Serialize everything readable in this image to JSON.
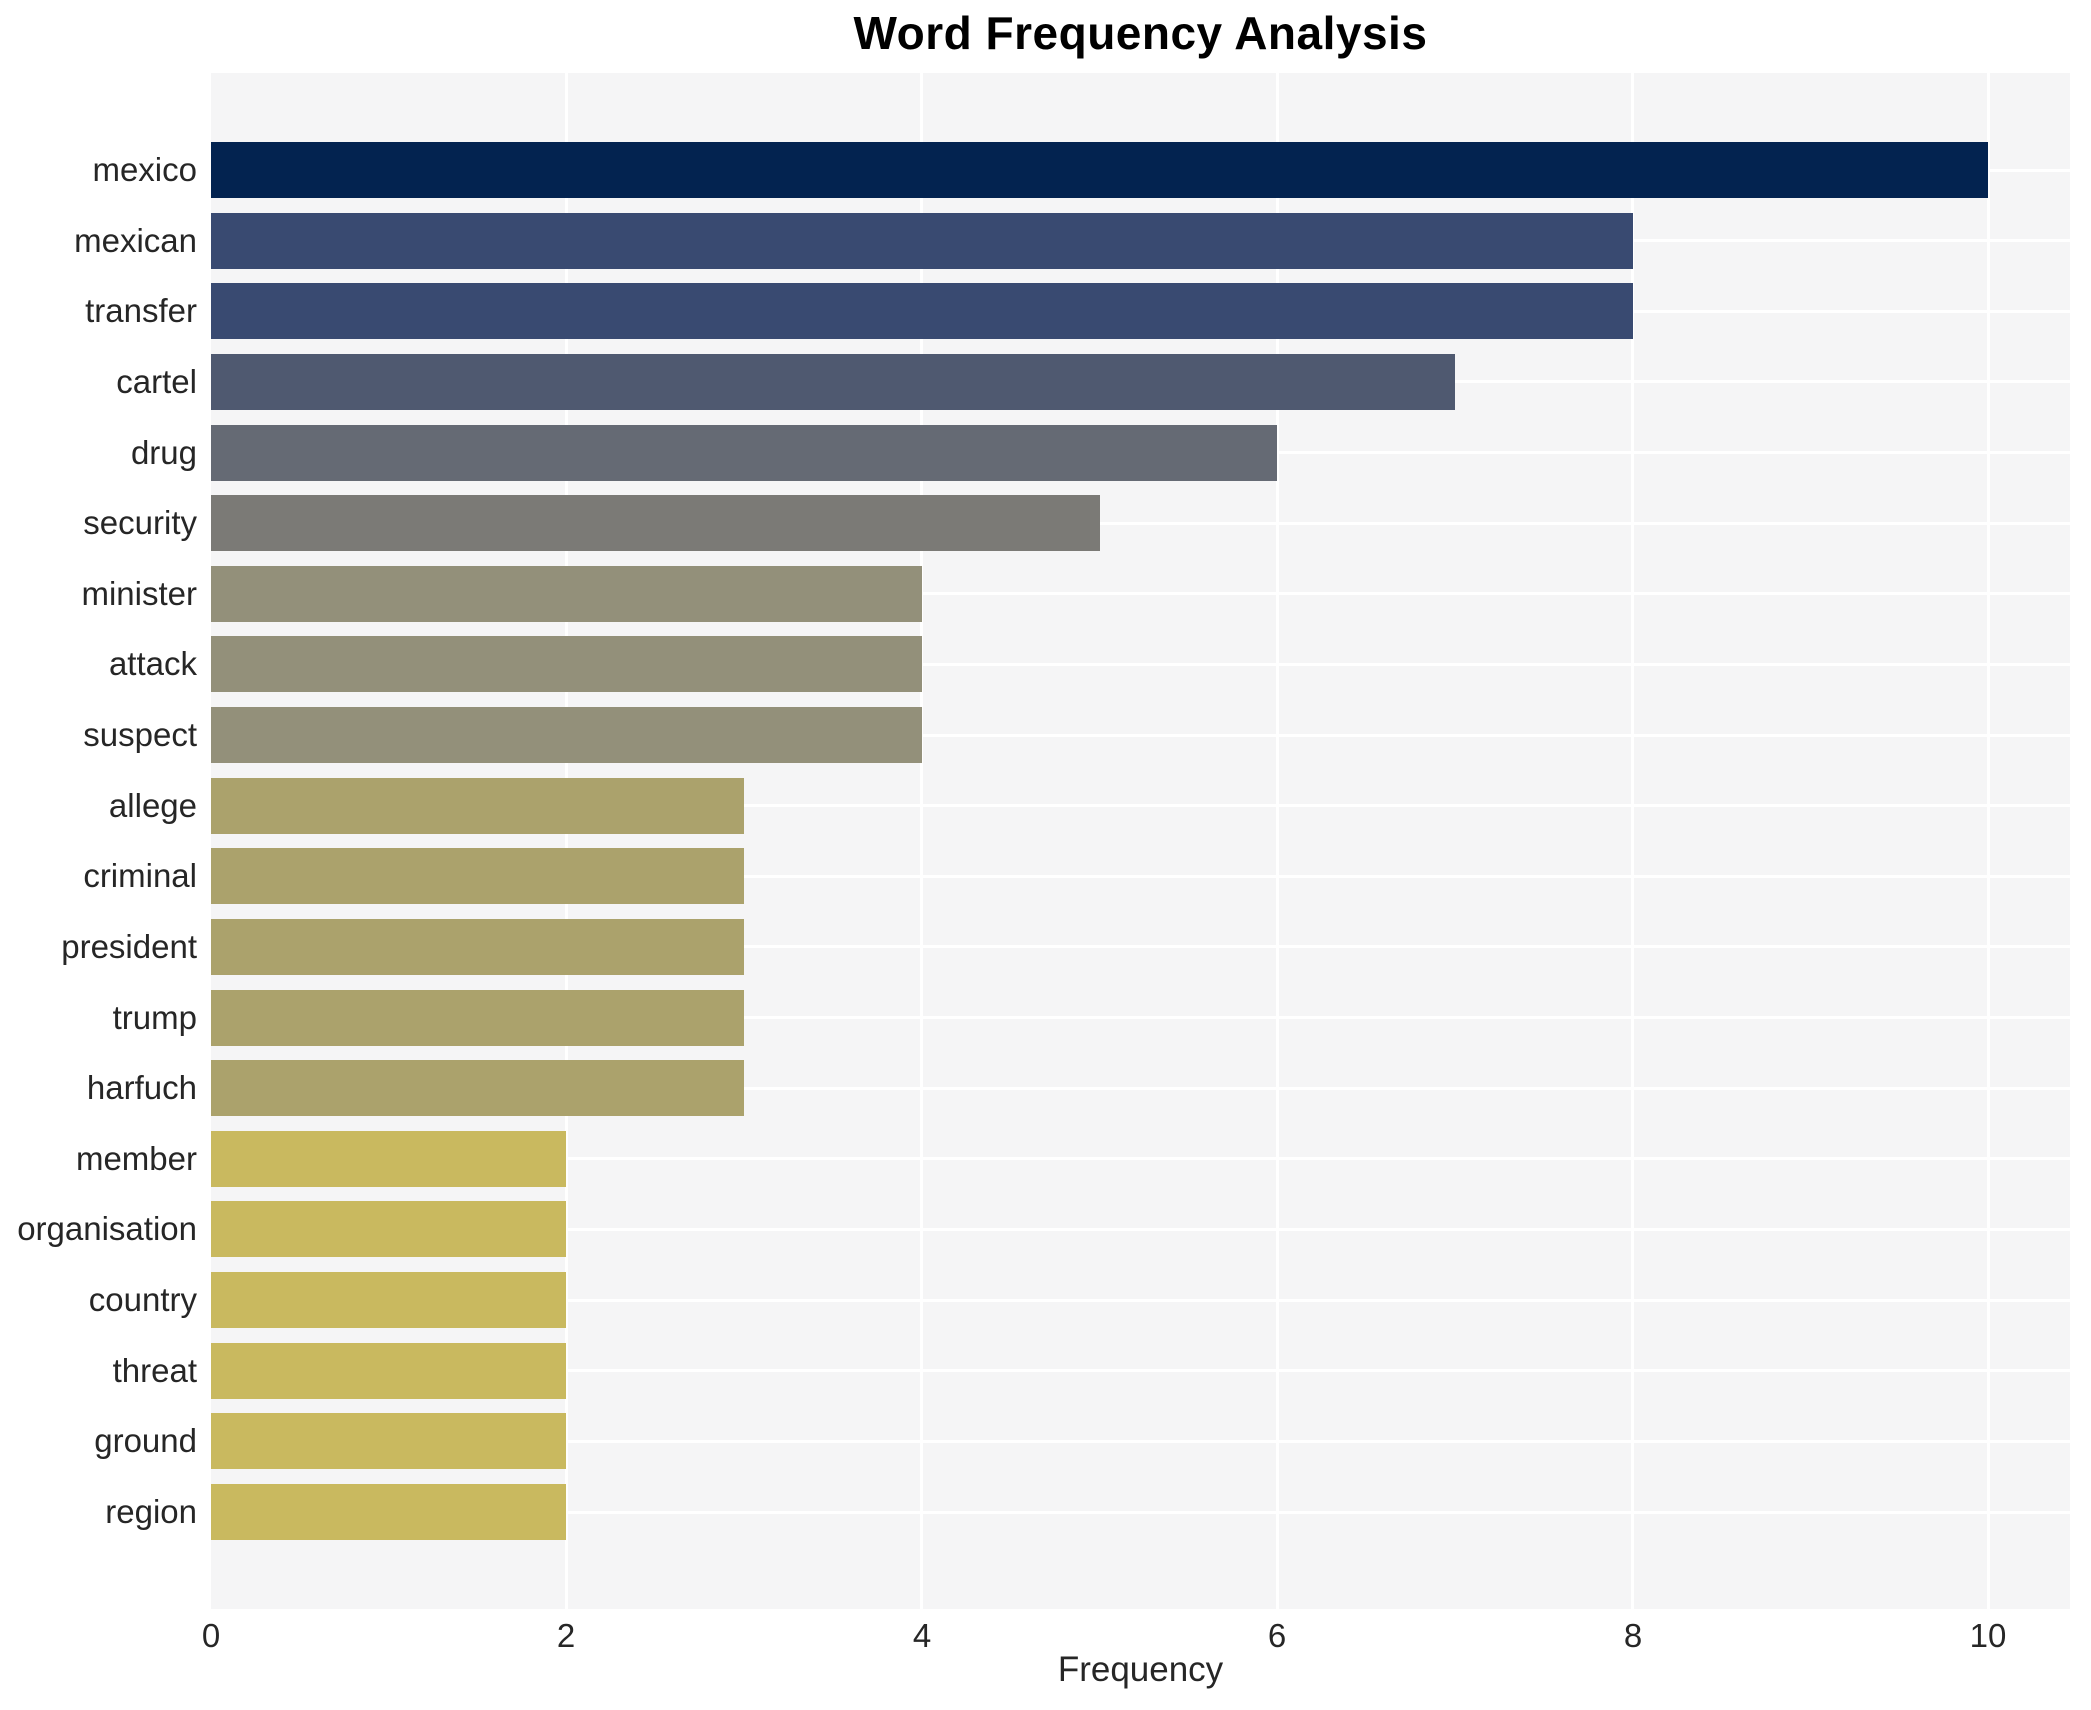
{
  "chart_data": {
    "type": "bar",
    "orientation": "horizontal",
    "title": "Word Frequency Analysis",
    "xlabel": "Frequency",
    "ylabel": "",
    "categories": [
      "mexico",
      "mexican",
      "transfer",
      "cartel",
      "drug",
      "security",
      "minister",
      "attack",
      "suspect",
      "allege",
      "criminal",
      "president",
      "trump",
      "harfuch",
      "member",
      "organisation",
      "country",
      "threat",
      "ground",
      "region"
    ],
    "values": [
      10,
      8,
      8,
      7,
      6,
      5,
      4,
      4,
      4,
      3,
      3,
      3,
      3,
      3,
      2,
      2,
      2,
      2,
      2,
      2
    ],
    "bar_colors": [
      "#032350",
      "#394a71",
      "#394a71",
      "#4f5970",
      "#656a74",
      "#7b7a76",
      "#93907a",
      "#93907a",
      "#93907a",
      "#aba26c",
      "#aba26c",
      "#aba26c",
      "#aba26c",
      "#aba26c",
      "#c9b95f",
      "#c9b95f",
      "#c9b95f",
      "#c9b95f",
      "#c9b95f",
      "#c9b95f"
    ],
    "xlim": [
      0,
      10.46
    ],
    "xticks": [
      0,
      2,
      4,
      6,
      8,
      10
    ],
    "xtick_labels": [
      "0",
      "2",
      "4",
      "6",
      "8",
      "10"
    ],
    "grid": true,
    "legend": false,
    "plot_bg_color": "#f5f5f6",
    "grid_color": "#ffffff",
    "text_color": "#262626",
    "title_color": "#000000"
  }
}
